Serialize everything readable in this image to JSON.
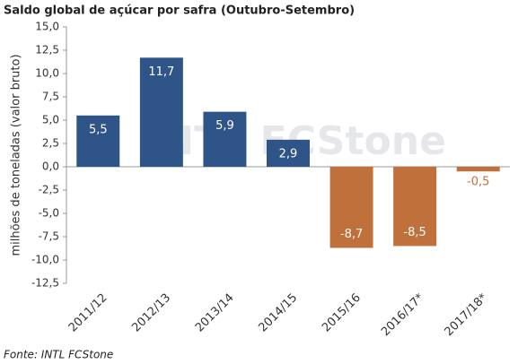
{
  "chart_data": {
    "type": "bar",
    "title": "Saldo global de açúcar por safra (Outubro-Setembro)",
    "y_label": "milhões de toneladas (valor bruto)",
    "source": "Fonte: INTL FCStone",
    "watermark": "INTL FCStone",
    "categories": [
      "2011/12",
      "2012/13",
      "2013/14",
      "2014/15",
      "2015/16",
      "2016/17*",
      "2017/18*"
    ],
    "values": [
      5.5,
      11.7,
      5.9,
      2.9,
      -8.7,
      -8.5,
      -0.5
    ],
    "value_labels": [
      "5,5",
      "11,7",
      "5,9",
      "2,9",
      "-8,7",
      "-8,5",
      "-0,5"
    ],
    "colors": [
      "#2e5488",
      "#2e5488",
      "#2e5488",
      "#2e5488",
      "#c0703a",
      "#c0703a",
      "#c0703a"
    ],
    "ylim": [
      -12.5,
      15
    ],
    "yticks": [
      {
        "value": -12.5,
        "label": "-12,5"
      },
      {
        "value": -10,
        "label": "-10,0"
      },
      {
        "value": -7.5,
        "label": "-7,5"
      },
      {
        "value": -5,
        "label": "-5,0"
      },
      {
        "value": -2.5,
        "label": "-2,5"
      },
      {
        "value": 0,
        "label": "0,0"
      },
      {
        "value": 2.5,
        "label": "2,5"
      },
      {
        "value": 5,
        "label": "5,0"
      },
      {
        "value": 7.5,
        "label": "7,5"
      },
      {
        "value": 10,
        "label": "10,0"
      },
      {
        "value": 12.5,
        "label": "12,5"
      },
      {
        "value": 15,
        "label": "15,0"
      }
    ],
    "grid": false
  }
}
